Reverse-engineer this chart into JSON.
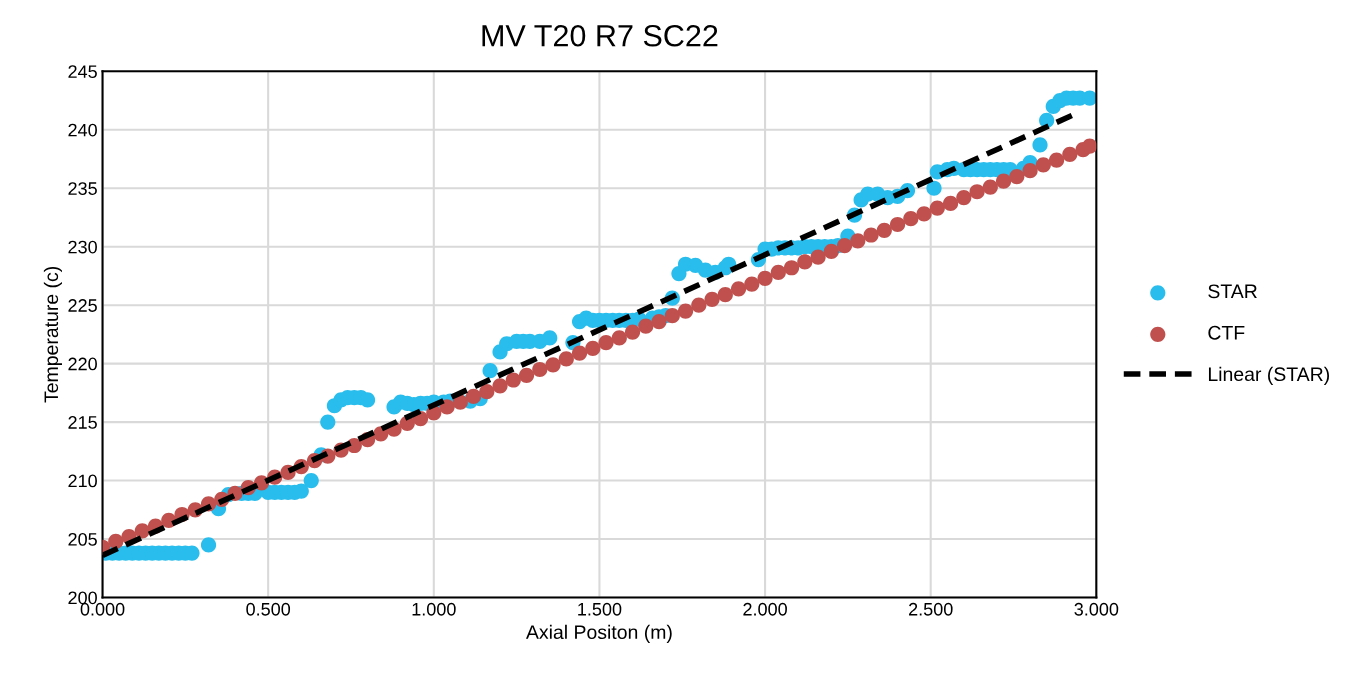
{
  "chart_data": {
    "type": "scatter",
    "title": "MV T20 R7 SC22",
    "xlabel": "Axial Positon (m)",
    "ylabel": "Temperature (c)",
    "xlim": [
      0,
      3
    ],
    "ylim": [
      200,
      245
    ],
    "xticks": [
      {
        "value": 0,
        "label": "0.000"
      },
      {
        "value": 0.5,
        "label": "0.500"
      },
      {
        "value": 1,
        "label": "1.000"
      },
      {
        "value": 1.5,
        "label": "1.500"
      },
      {
        "value": 2,
        "label": "2.000"
      },
      {
        "value": 2.5,
        "label": "2.500"
      },
      {
        "value": 3,
        "label": "3.000"
      }
    ],
    "yticks": [
      200,
      205,
      210,
      215,
      220,
      225,
      230,
      235,
      240,
      245
    ],
    "grid": true,
    "legend": "right",
    "marker": "circle",
    "series": [
      {
        "name": "STAR",
        "color": "#28bdec",
        "x": [
          0.01,
          0.03,
          0.05,
          0.07,
          0.09,
          0.11,
          0.13,
          0.15,
          0.17,
          0.19,
          0.21,
          0.23,
          0.25,
          0.27,
          0.32,
          0.35,
          0.38,
          0.4,
          0.42,
          0.44,
          0.46,
          0.48,
          0.5,
          0.52,
          0.54,
          0.56,
          0.58,
          0.6,
          0.63,
          0.66,
          0.68,
          0.7,
          0.72,
          0.74,
          0.76,
          0.78,
          0.8,
          0.88,
          0.9,
          0.92,
          0.94,
          0.96,
          0.98,
          1.0,
          1.03,
          1.05,
          1.07,
          1.09,
          1.11,
          1.14,
          1.17,
          1.2,
          1.22,
          1.25,
          1.27,
          1.29,
          1.32,
          1.35,
          1.42,
          1.44,
          1.46,
          1.48,
          1.5,
          1.52,
          1.54,
          1.56,
          1.58,
          1.6,
          1.62,
          1.64,
          1.66,
          1.68,
          1.7,
          1.72,
          1.74,
          1.76,
          1.79,
          1.82,
          1.85,
          1.88,
          1.89,
          1.98,
          2.0,
          2.02,
          2.04,
          2.06,
          2.08,
          2.1,
          2.12,
          2.14,
          2.16,
          2.18,
          2.2,
          2.22,
          2.25,
          2.27,
          2.29,
          2.31,
          2.34,
          2.37,
          2.4,
          2.43,
          2.51,
          2.52,
          2.55,
          2.57,
          2.6,
          2.62,
          2.64,
          2.66,
          2.68,
          2.7,
          2.72,
          2.74,
          2.76,
          2.78,
          2.8,
          2.83,
          2.85,
          2.87,
          2.89,
          2.91,
          2.93,
          2.95,
          2.98
        ],
        "values": [
          203.8,
          203.8,
          203.8,
          203.8,
          203.8,
          203.8,
          203.8,
          203.8,
          203.8,
          203.8,
          203.8,
          203.8,
          203.8,
          203.8,
          204.5,
          207.6,
          208.8,
          null,
          208.9,
          208.9,
          208.9,
          null,
          209.0,
          209.0,
          209.0,
          209.0,
          209.0,
          209.1,
          210.0,
          212.2,
          215.0,
          216.4,
          216.9,
          217.1,
          217.1,
          217.1,
          216.9,
          216.3,
          216.7,
          216.6,
          216.5,
          216.6,
          216.6,
          216.7,
          216.7,
          216.8,
          null,
          null,
          216.8,
          217.0,
          219.4,
          221.0,
          221.7,
          221.9,
          221.9,
          221.9,
          221.9,
          222.2,
          221.8,
          223.6,
          223.9,
          223.7,
          223.7,
          223.7,
          223.7,
          223.7,
          223.7,
          223.7,
          223.8,
          null,
          223.9,
          224.0,
          224.1,
          225.6,
          227.7,
          228.5,
          228.4,
          228.0,
          227.8,
          228.2,
          228.5,
          228.9,
          229.8,
          229.8,
          229.9,
          229.9,
          229.9,
          229.9,
          230.0,
          230.0,
          230.0,
          230.0,
          230.0,
          230.1,
          230.9,
          232.7,
          234.0,
          234.5,
          234.5,
          234.2,
          234.3,
          234.8,
          235.0,
          236.4,
          236.6,
          236.7,
          236.6,
          236.6,
          236.6,
          236.6,
          236.6,
          236.6,
          236.6,
          236.6,
          null,
          236.7,
          237.2,
          238.7,
          240.8,
          242.0,
          242.5,
          242.7,
          242.7,
          242.7,
          242.7
        ]
      },
      {
        "name": "CTF",
        "color": "#c0504d",
        "x": [
          0,
          0.04,
          0.08,
          0.12,
          0.16,
          0.2,
          0.24,
          0.28,
          0.32,
          0.36,
          0.4,
          0.44,
          0.48,
          0.52,
          0.56,
          0.6,
          0.64,
          0.68,
          0.72,
          0.76,
          0.8,
          0.84,
          0.88,
          0.92,
          0.96,
          1.0,
          1.04,
          1.08,
          1.12,
          1.16,
          1.2,
          1.24,
          1.28,
          1.32,
          1.36,
          1.4,
          1.44,
          1.48,
          1.52,
          1.56,
          1.6,
          1.64,
          1.68,
          1.72,
          1.76,
          1.8,
          1.84,
          1.88,
          1.92,
          1.96,
          2.0,
          2.04,
          2.08,
          2.12,
          2.16,
          2.2,
          2.24,
          2.28,
          2.32,
          2.36,
          2.4,
          2.44,
          2.48,
          2.52,
          2.56,
          2.6,
          2.64,
          2.68,
          2.72,
          2.76,
          2.8,
          2.84,
          2.88,
          2.92,
          2.96,
          2.98
        ],
        "values": [
          204.3,
          204.8,
          205.2,
          205.7,
          206.1,
          206.6,
          207.1,
          207.5,
          208.0,
          208.4,
          208.9,
          209.4,
          209.8,
          210.3,
          210.7,
          211.2,
          211.7,
          212.1,
          212.6,
          213.0,
          213.5,
          214.0,
          214.4,
          214.9,
          215.3,
          215.8,
          216.3,
          216.7,
          217.2,
          217.6,
          218.1,
          218.6,
          219.0,
          219.5,
          219.9,
          220.4,
          220.9,
          221.3,
          221.8,
          222.2,
          222.7,
          223.2,
          223.6,
          224.1,
          224.5,
          225.0,
          225.5,
          225.9,
          226.4,
          226.8,
          227.3,
          227.8,
          228.2,
          228.7,
          229.1,
          229.6,
          230.1,
          230.5,
          231.0,
          231.4,
          231.9,
          232.4,
          232.8,
          233.3,
          233.7,
          234.2,
          234.7,
          235.1,
          235.6,
          236.0,
          236.5,
          237.0,
          237.4,
          237.9,
          238.3,
          238.6
        ]
      },
      {
        "name": "Linear (STAR)",
        "color": "#000000",
        "type": "line",
        "marker": "none",
        "line_style": "dashed",
        "x": [
          0,
          2.94
        ],
        "values": [
          203.6,
          241.4
        ]
      }
    ]
  }
}
